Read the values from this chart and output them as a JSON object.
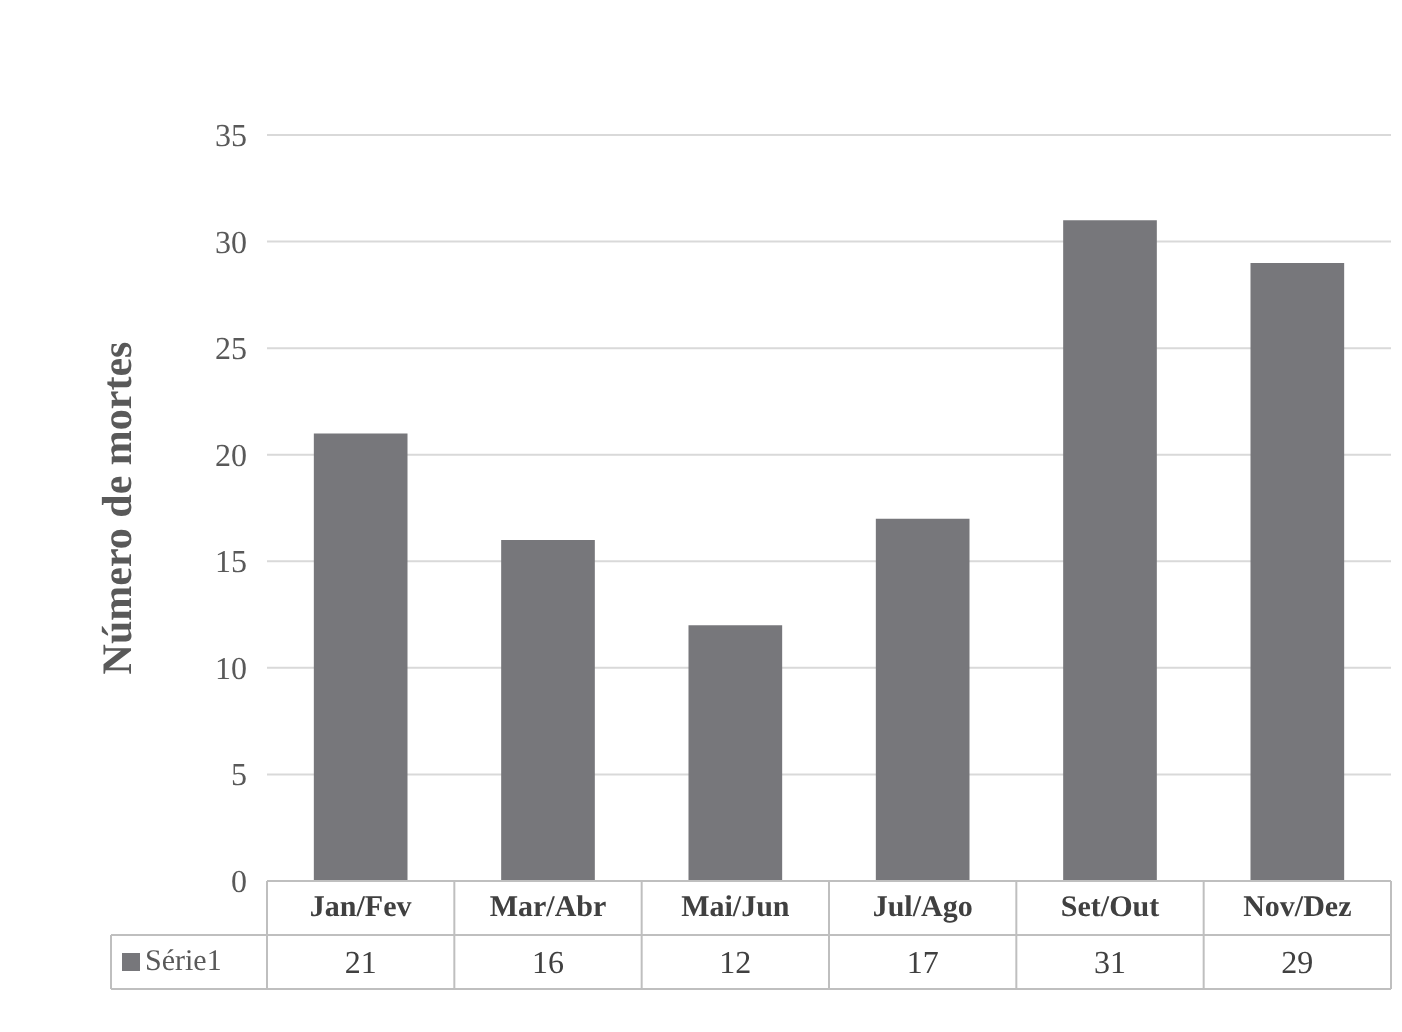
{
  "chart_data": {
    "type": "bar",
    "ylabel": "Número de mortes",
    "categories": [
      "Jan/Fev",
      "Mar/Abr",
      "Mai/Jun",
      "Jul/Ago",
      "Set/Out",
      "Nov/Dez"
    ],
    "series": [
      {
        "name": "Série1",
        "color": "#77777b",
        "values": [
          21,
          16,
          12,
          17,
          31,
          29
        ]
      }
    ],
    "ylim": [
      0,
      35
    ],
    "yticks": [
      0,
      5,
      10,
      15,
      20,
      25,
      30,
      35
    ],
    "grid": "y",
    "data_labels": true,
    "legend": "bottom"
  }
}
